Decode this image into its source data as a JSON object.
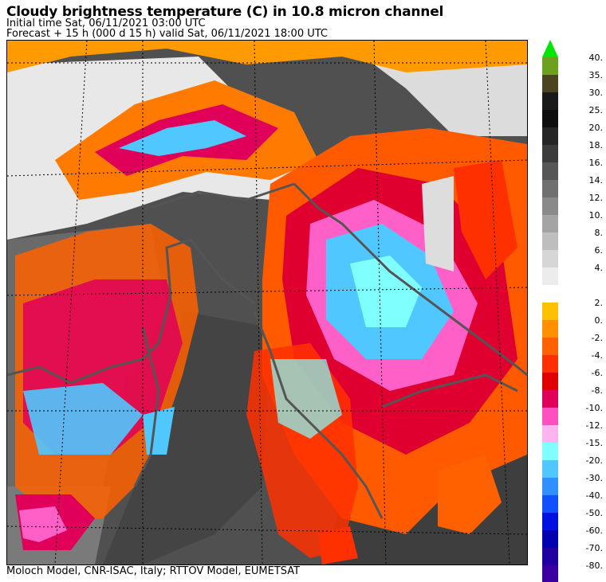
{
  "header": {
    "title": "Cloudy brightness temperature (C) in   10.8 micron channel",
    "initial": "Initial time  Sat, 06/11/2021  03:00 UTC",
    "forecast": "Forecast  +  15 h  (000 d 15 h)  valid Sat, 06/11/2021 18:00 UTC"
  },
  "footer": {
    "credit": "Moloch Model, CNR-ISAC, Italy; RTTOV Model, EUMETSAT"
  },
  "legend": {
    "top_arrow_color": "#00e600",
    "bottom_arrow_color": "#3a00a0",
    "upper": [
      {
        "label": "40.",
        "color": "#6ea020"
      },
      {
        "label": "35.",
        "color": "#4a4420"
      },
      {
        "label": "30.",
        "color": "#1a1a1a"
      },
      {
        "label": "25.",
        "color": "#0e0e0e"
      },
      {
        "label": "20.",
        "color": "#262626"
      },
      {
        "label": "18.",
        "color": "#3c3c3c"
      },
      {
        "label": "16.",
        "color": "#565656"
      },
      {
        "label": "14.",
        "color": "#707070"
      },
      {
        "label": "12.",
        "color": "#8a8a8a"
      },
      {
        "label": "10.",
        "color": "#a4a4a4"
      },
      {
        "label": "8.",
        "color": "#bebebe"
      },
      {
        "label": "6.",
        "color": "#d6d6d6"
      },
      {
        "label": "4.",
        "color": "#ececec"
      }
    ],
    "lower": [
      {
        "label": "2.",
        "color": "#ffc000"
      },
      {
        "label": "0.",
        "color": "#ff9000"
      },
      {
        "label": "-2.",
        "color": "#ff6000"
      },
      {
        "label": "-4.",
        "color": "#ff3000"
      },
      {
        "label": "-6.",
        "color": "#e00000"
      },
      {
        "label": "-8.",
        "color": "#e0005a"
      },
      {
        "label": "-10.",
        "color": "#ff50c0"
      },
      {
        "label": "-12.",
        "color": "#ffb4f0"
      },
      {
        "label": "-15.",
        "color": "#80ffff"
      },
      {
        "label": "-20.",
        "color": "#50c8ff"
      },
      {
        "label": "-30.",
        "color": "#3090ff"
      },
      {
        "label": "-40.",
        "color": "#1050ff"
      },
      {
        "label": "-50.",
        "color": "#0010e0"
      },
      {
        "label": "-60.",
        "color": "#0000b0"
      },
      {
        "label": "-70.",
        "color": "#2000a0"
      },
      {
        "label": "-80.",
        "color": "#3a00a0"
      }
    ]
  }
}
